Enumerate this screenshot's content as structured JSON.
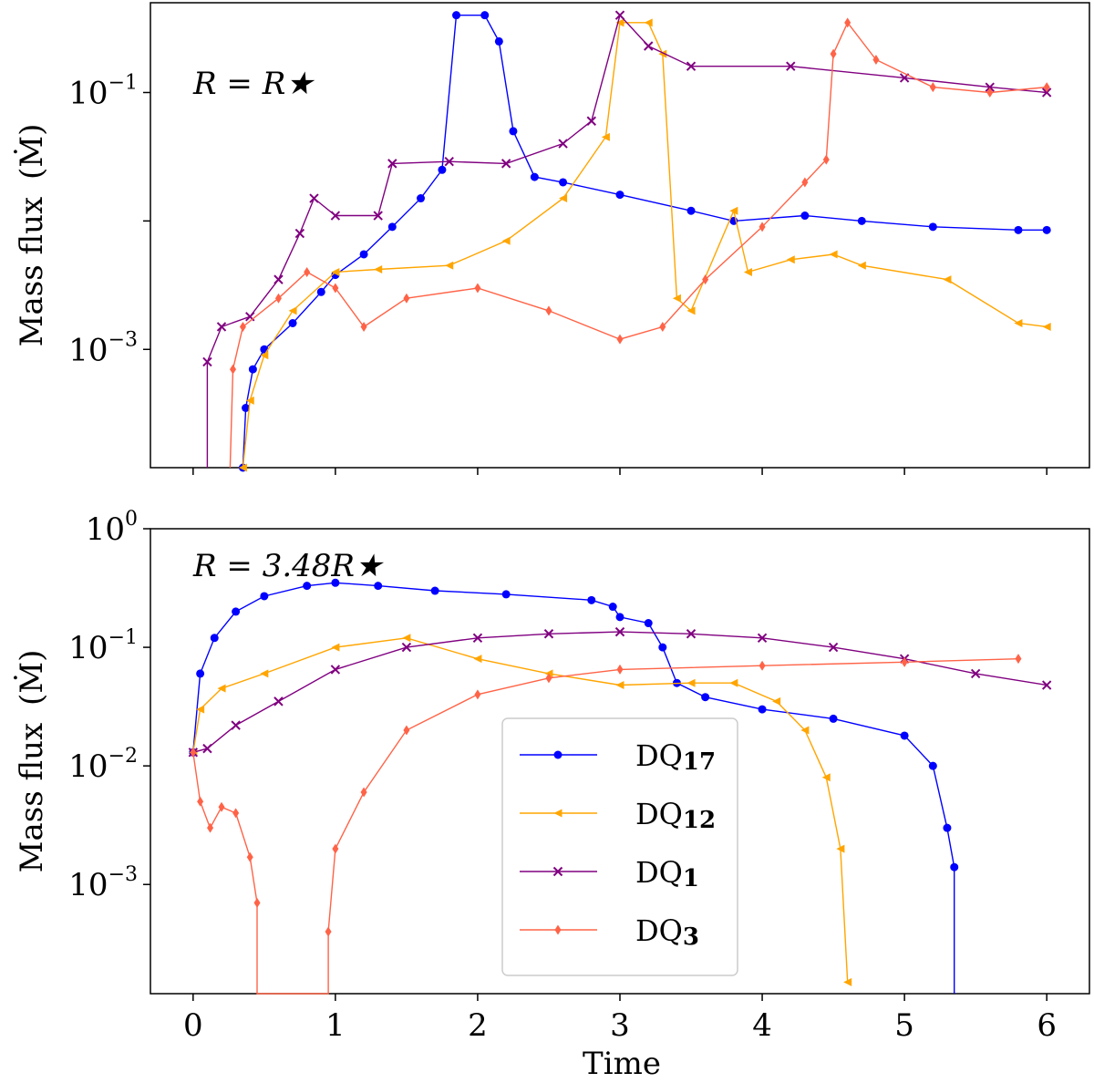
{
  "chart_data": [
    {
      "type": "line",
      "panel": "top",
      "annotation": "R = R★",
      "ylabel_text": "Mass flux",
      "ylabel_unit": "(Ṁ)",
      "yscale": "log",
      "ylim": [
        0.00012,
        0.5
      ],
      "xlim": [
        -0.3,
        6.3
      ],
      "x_ticks": [
        0,
        1,
        2,
        3,
        4,
        5,
        6
      ],
      "y_ticks": [
        {
          "value": 0.1,
          "base": "10",
          "exp": "−1"
        },
        {
          "value": 0.001,
          "base": "10",
          "exp": "−3"
        }
      ],
      "series": [
        {
          "name": "DQ17",
          "color": "#0000ff",
          "marker": "circle",
          "points": [
            [
              0.35,
              0.00012
            ],
            [
              0.37,
              0.00035
            ],
            [
              0.42,
              0.0007
            ],
            [
              0.5,
              0.001
            ],
            [
              0.7,
              0.0016
            ],
            [
              0.9,
              0.0028
            ],
            [
              1.0,
              0.0038
            ],
            [
              1.2,
              0.0055
            ],
            [
              1.4,
              0.009
            ],
            [
              1.6,
              0.015
            ],
            [
              1.75,
              0.025
            ],
            [
              1.85,
              0.4
            ],
            [
              2.05,
              0.4
            ],
            [
              2.15,
              0.25
            ],
            [
              2.25,
              0.05
            ],
            [
              2.4,
              0.022
            ],
            [
              2.6,
              0.02
            ],
            [
              3.0,
              0.016
            ],
            [
              3.5,
              0.012
            ],
            [
              3.8,
              0.01
            ],
            [
              4.3,
              0.011
            ],
            [
              4.7,
              0.01
            ],
            [
              5.2,
              0.009
            ],
            [
              5.8,
              0.0085
            ],
            [
              6.0,
              0.0085
            ]
          ]
        },
        {
          "name": "DQ12",
          "color": "#ffa500",
          "marker": "triangle-left",
          "points": [
            [
              0.35,
              0.00012
            ],
            [
              0.4,
              0.0004
            ],
            [
              0.5,
              0.0009
            ],
            [
              0.7,
              0.002
            ],
            [
              1.0,
              0.004
            ],
            [
              1.3,
              0.0042
            ],
            [
              1.8,
              0.0045
            ],
            [
              2.2,
              0.007
            ],
            [
              2.6,
              0.015
            ],
            [
              2.9,
              0.045
            ],
            [
              3.0,
              0.35
            ],
            [
              3.2,
              0.35
            ],
            [
              3.3,
              0.2
            ],
            [
              3.4,
              0.0025
            ],
            [
              3.5,
              0.002
            ],
            [
              3.8,
              0.012
            ],
            [
              3.9,
              0.004
            ],
            [
              4.2,
              0.005
            ],
            [
              4.5,
              0.0055
            ],
            [
              4.7,
              0.0045
            ],
            [
              5.3,
              0.0035
            ],
            [
              5.8,
              0.0016
            ],
            [
              6.0,
              0.0015
            ]
          ]
        },
        {
          "name": "DQ1",
          "color": "#800080",
          "marker": "x",
          "points": [
            [
              0.1,
              0.0001
            ],
            [
              0.1,
              0.0008
            ],
            [
              0.2,
              0.0015
            ],
            [
              0.4,
              0.0018
            ],
            [
              0.6,
              0.0035
            ],
            [
              0.75,
              0.008
            ],
            [
              0.85,
              0.015
            ],
            [
              1.0,
              0.011
            ],
            [
              1.3,
              0.011
            ],
            [
              1.4,
              0.028
            ],
            [
              1.8,
              0.029
            ],
            [
              2.2,
              0.028
            ],
            [
              2.6,
              0.04
            ],
            [
              2.8,
              0.06
            ],
            [
              3.0,
              0.4
            ],
            [
              3.2,
              0.23
            ],
            [
              3.5,
              0.16
            ],
            [
              4.2,
              0.16
            ],
            [
              5.0,
              0.13
            ],
            [
              5.6,
              0.11
            ],
            [
              6.0,
              0.1
            ]
          ]
        },
        {
          "name": "DQ3",
          "color": "#ff6347",
          "marker": "diamond",
          "points": [
            [
              0.26,
              0.0001
            ],
            [
              0.28,
              0.0007
            ],
            [
              0.35,
              0.0015
            ],
            [
              0.6,
              0.0025
            ],
            [
              0.8,
              0.004
            ],
            [
              1.0,
              0.003
            ],
            [
              1.2,
              0.0015
            ],
            [
              1.5,
              0.0025
            ],
            [
              2.0,
              0.003
            ],
            [
              2.5,
              0.002
            ],
            [
              3.0,
              0.0012
            ],
            [
              3.3,
              0.0015
            ],
            [
              3.6,
              0.0035
            ],
            [
              4.0,
              0.009
            ],
            [
              4.3,
              0.02
            ],
            [
              4.45,
              0.03
            ],
            [
              4.5,
              0.2
            ],
            [
              4.6,
              0.35
            ],
            [
              4.8,
              0.18
            ],
            [
              5.2,
              0.11
            ],
            [
              5.6,
              0.1
            ],
            [
              6.0,
              0.11
            ]
          ]
        }
      ]
    },
    {
      "type": "line",
      "panel": "bottom",
      "annotation": "R = 3.48R★",
      "xlabel": "Time",
      "ylabel_text": "Mass flux",
      "ylabel_unit": "(Ṁ)",
      "yscale": "log",
      "ylim": [
        0.00012,
        1.0
      ],
      "xlim": [
        -0.3,
        6.3
      ],
      "x_ticks": [
        0,
        1,
        2,
        3,
        4,
        5,
        6
      ],
      "x_tick_labels": [
        "0",
        "1",
        "2",
        "3",
        "4",
        "5",
        "6"
      ],
      "y_ticks": [
        {
          "value": 1.0,
          "base": "10",
          "exp": "0"
        },
        {
          "value": 0.1,
          "base": "10",
          "exp": "−1"
        },
        {
          "value": 0.01,
          "base": "10",
          "exp": "−2"
        },
        {
          "value": 0.001,
          "base": "10",
          "exp": "−3"
        }
      ],
      "series": [
        {
          "name": "DQ17",
          "color": "#0000ff",
          "marker": "circle",
          "points": [
            [
              0.0,
              0.013
            ],
            [
              0.05,
              0.06
            ],
            [
              0.15,
              0.12
            ],
            [
              0.3,
              0.2
            ],
            [
              0.5,
              0.27
            ],
            [
              0.8,
              0.33
            ],
            [
              1.0,
              0.35
            ],
            [
              1.3,
              0.33
            ],
            [
              1.7,
              0.3
            ],
            [
              2.2,
              0.28
            ],
            [
              2.8,
              0.25
            ],
            [
              2.95,
              0.22
            ],
            [
              3.0,
              0.18
            ],
            [
              3.2,
              0.16
            ],
            [
              3.3,
              0.1
            ],
            [
              3.4,
              0.05
            ],
            [
              3.6,
              0.038
            ],
            [
              4.0,
              0.03
            ],
            [
              4.5,
              0.025
            ],
            [
              5.0,
              0.018
            ],
            [
              5.2,
              0.01
            ],
            [
              5.3,
              0.003
            ],
            [
              5.35,
              0.0014
            ],
            [
              5.35,
              0.0001
            ]
          ]
        },
        {
          "name": "DQ12",
          "color": "#ffa500",
          "marker": "triangle-left",
          "points": [
            [
              0.0,
              0.013
            ],
            [
              0.05,
              0.03
            ],
            [
              0.2,
              0.045
            ],
            [
              0.5,
              0.06
            ],
            [
              1.0,
              0.1
            ],
            [
              1.5,
              0.12
            ],
            [
              2.0,
              0.08
            ],
            [
              2.5,
              0.06
            ],
            [
              3.0,
              0.048
            ],
            [
              3.5,
              0.05
            ],
            [
              3.8,
              0.05
            ],
            [
              4.1,
              0.035
            ],
            [
              4.3,
              0.02
            ],
            [
              4.45,
              0.008
            ],
            [
              4.55,
              0.002
            ],
            [
              4.6,
              0.00015
            ]
          ]
        },
        {
          "name": "DQ1",
          "color": "#800080",
          "marker": "x",
          "points": [
            [
              0.0,
              0.013
            ],
            [
              0.1,
              0.014
            ],
            [
              0.3,
              0.022
            ],
            [
              0.6,
              0.035
            ],
            [
              1.0,
              0.065
            ],
            [
              1.5,
              0.1
            ],
            [
              2.0,
              0.12
            ],
            [
              2.5,
              0.13
            ],
            [
              3.0,
              0.135
            ],
            [
              3.5,
              0.13
            ],
            [
              4.0,
              0.12
            ],
            [
              4.5,
              0.1
            ],
            [
              5.0,
              0.08
            ],
            [
              5.5,
              0.06
            ],
            [
              6.0,
              0.048
            ]
          ]
        },
        {
          "name": "DQ3",
          "color": "#ff6347",
          "marker": "diamond",
          "points": [
            [
              0.0,
              0.013
            ],
            [
              0.05,
              0.005
            ],
            [
              0.12,
              0.003
            ],
            [
              0.2,
              0.0045
            ],
            [
              0.3,
              0.004
            ],
            [
              0.4,
              0.0017
            ],
            [
              0.45,
              0.0007
            ],
            [
              0.45,
              0.0001
            ],
            [
              0.95,
              0.0001
            ],
            [
              0.95,
              0.0004
            ],
            [
              1.0,
              0.002
            ],
            [
              1.2,
              0.006
            ],
            [
              1.5,
              0.02
            ],
            [
              2.0,
              0.04
            ],
            [
              2.5,
              0.055
            ],
            [
              3.0,
              0.065
            ],
            [
              4.0,
              0.07
            ],
            [
              5.0,
              0.075
            ],
            [
              5.8,
              0.08
            ]
          ]
        }
      ]
    }
  ],
  "legend": {
    "items": [
      {
        "base": "DQ",
        "sub": "17",
        "color": "#0000ff",
        "marker": "circle"
      },
      {
        "base": "DQ",
        "sub": "12",
        "color": "#ffa500",
        "marker": "triangle-left"
      },
      {
        "base": "DQ",
        "sub": "1",
        "color": "#800080",
        "marker": "x"
      },
      {
        "base": "DQ",
        "sub": "3",
        "color": "#ff6347",
        "marker": "diamond"
      }
    ],
    "placement": "lower-center (bottom panel)"
  }
}
